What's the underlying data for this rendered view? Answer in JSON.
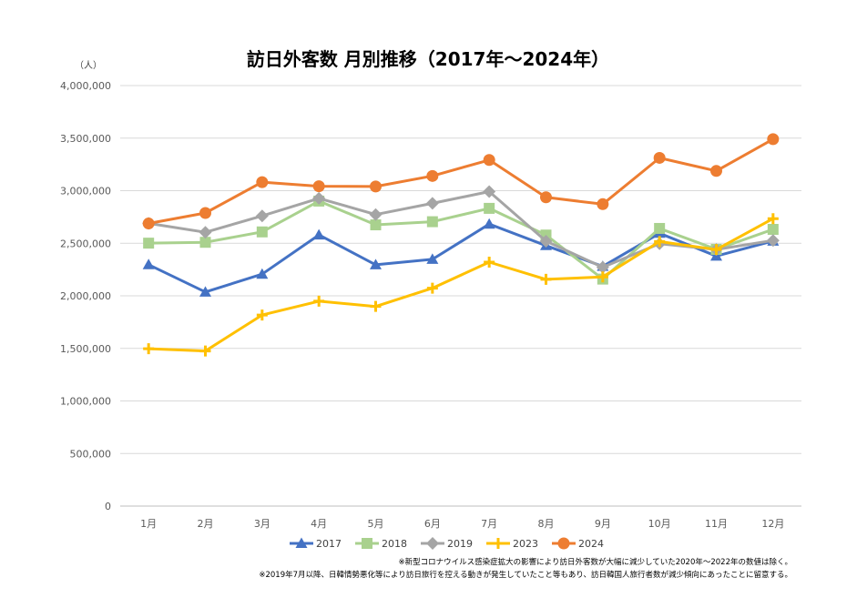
{
  "chart_data": {
    "type": "line",
    "title": "訪日外客数 月別推移（2017年〜2024年）",
    "unit_label": "（人）",
    "categories": [
      "1月",
      "2月",
      "3月",
      "4月",
      "5月",
      "6月",
      "7月",
      "8月",
      "9月",
      "10月",
      "11月",
      "12月"
    ],
    "ylim": [
      0,
      4000000
    ],
    "yticks": [
      0,
      500000,
      1000000,
      1500000,
      2000000,
      2500000,
      3000000,
      3500000,
      4000000
    ],
    "ytick_labels": [
      "0",
      "500,000",
      "1,000,000",
      "1,500,000",
      "2,000,000",
      "2,500,000",
      "3,000,000",
      "3,500,000",
      "4,000,000"
    ],
    "grid": true,
    "legend_position": "bottom",
    "series": [
      {
        "name": "2017",
        "color": "#4472C4",
        "marker": "triangle",
        "values": [
          2296000,
          2036000,
          2206000,
          2579000,
          2295000,
          2347000,
          2682000,
          2478000,
          2280000,
          2595000,
          2378000,
          2521000
        ]
      },
      {
        "name": "2018",
        "color": "#A9D18E",
        "marker": "square",
        "values": [
          2501000,
          2509000,
          2608000,
          2901000,
          2675000,
          2705000,
          2832000,
          2578000,
          2159000,
          2641000,
          2442000,
          2632000
        ]
      },
      {
        "name": "2019",
        "color": "#A5A5A5",
        "marker": "diamond",
        "values": [
          2689000,
          2604000,
          2760000,
          2927000,
          2773000,
          2880000,
          2991000,
          2520000,
          2272000,
          2496000,
          2441000,
          2526000
        ]
      },
      {
        "name": "2023",
        "color": "#FFC000",
        "marker": "plus",
        "values": [
          1497000,
          1475000,
          1817000,
          1949000,
          1899000,
          2073000,
          2320000,
          2157000,
          2180000,
          2516000,
          2440000,
          2734000
        ]
      },
      {
        "name": "2024",
        "color": "#ED7D31",
        "marker": "circle",
        "values": [
          2688000,
          2788000,
          3081000,
          3042000,
          3040000,
          3140000,
          3292000,
          2937000,
          2872000,
          3312000,
          3188000,
          3490000
        ]
      }
    ],
    "notes": [
      "※新型コロナウイルス感染症拡大の影響により訪日外客数が大幅に減少していた2020年〜2022年の数値は除く。",
      "※2019年7月以降、日韓情勢悪化等により訪日旅行を控える動きが発生していたこと等もあり、訪日韓国人旅行者数が減少傾向にあったことに留意する。"
    ]
  }
}
